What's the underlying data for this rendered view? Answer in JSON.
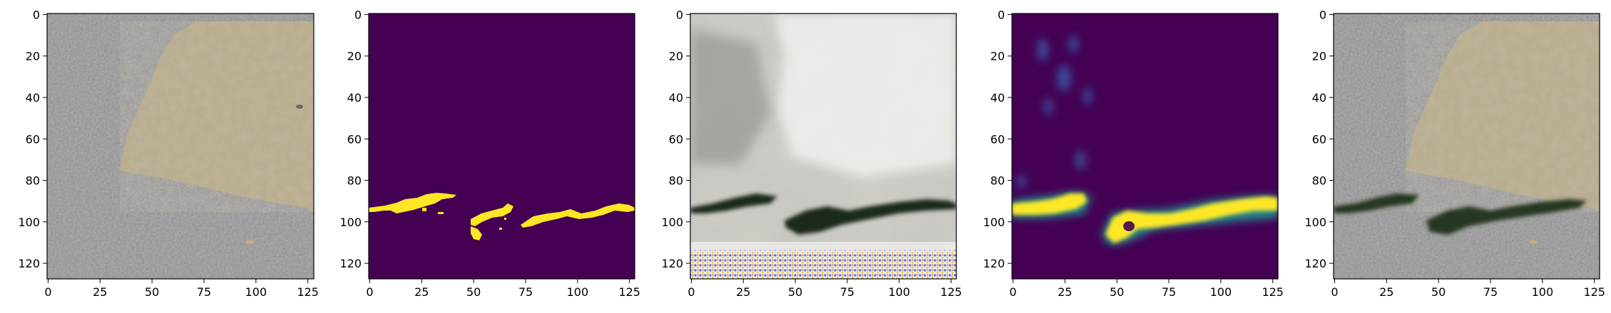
{
  "figure": {
    "panels": [
      {
        "id": "input-image",
        "kind": "pavement-photo"
      },
      {
        "id": "ground-truth-mask",
        "kind": "binary-mask"
      },
      {
        "id": "generated-image",
        "kind": "synthetic-crack-image"
      },
      {
        "id": "predicted-mask",
        "kind": "soft-mask"
      },
      {
        "id": "composited-image",
        "kind": "pavement-photo-with-crack"
      }
    ],
    "x_ticks": [
      "0",
      "25",
      "50",
      "75",
      "100",
      "125"
    ],
    "y_ticks": [
      "0",
      "20",
      "40",
      "60",
      "80",
      "100",
      "120"
    ],
    "axis_range": {
      "x": [
        0,
        128
      ],
      "y": [
        0,
        128
      ]
    },
    "colors": {
      "viridis_background": "#440154",
      "viridis_foreground": "#fde725",
      "asphalt": "#8f8f8f",
      "patch": "#b9ab8e"
    }
  }
}
